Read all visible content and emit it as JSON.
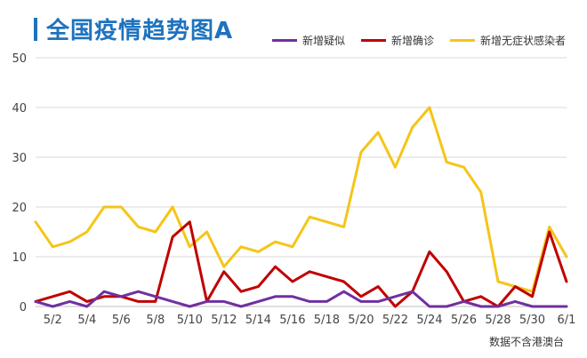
{
  "chart_data": {
    "type": "line",
    "title": "全国疫情趋势图A",
    "xlabel": "",
    "ylabel": "",
    "ylim": [
      0,
      50
    ],
    "yticks": [
      0,
      10,
      20,
      30,
      40,
      50
    ],
    "grid": "horizontal",
    "legend_position": "top-right",
    "x": [
      "5/1",
      "5/2",
      "5/3",
      "5/4",
      "5/5",
      "5/6",
      "5/7",
      "5/8",
      "5/9",
      "5/10",
      "5/11",
      "5/12",
      "5/13",
      "5/14",
      "5/15",
      "5/16",
      "5/17",
      "5/18",
      "5/19",
      "5/20",
      "5/21",
      "5/22",
      "5/23",
      "5/24",
      "5/25",
      "5/26",
      "5/27",
      "5/28",
      "5/29",
      "5/30",
      "5/31",
      "6/1"
    ],
    "xtick_labels": [
      "5/2",
      "5/4",
      "5/6",
      "5/8",
      "5/10",
      "5/12",
      "5/14",
      "5/16",
      "5/18",
      "5/20",
      "5/22",
      "5/24",
      "5/26",
      "5/28",
      "5/30",
      "6/1"
    ],
    "series": [
      {
        "name": "新增疑似",
        "color": "#7030a0",
        "values": [
          1,
          0,
          1,
          0,
          3,
          2,
          3,
          2,
          1,
          0,
          1,
          1,
          0,
          1,
          2,
          2,
          1,
          1,
          3,
          1,
          1,
          2,
          3,
          0,
          0,
          1,
          0,
          0,
          1,
          0,
          0,
          0
        ]
      },
      {
        "name": "新增确诊",
        "color": "#c00000",
        "values": [
          1,
          2,
          3,
          1,
          2,
          2,
          1,
          1,
          14,
          17,
          1,
          7,
          3,
          4,
          8,
          5,
          7,
          6,
          5,
          2,
          4,
          0,
          3,
          11,
          7,
          1,
          2,
          0,
          4,
          2,
          15,
          5
        ]
      },
      {
        "name": "新增无症状感染者",
        "color": "#f5c518",
        "values": [
          17,
          12,
          13,
          15,
          20,
          20,
          16,
          15,
          20,
          12,
          15,
          8,
          12,
          11,
          13,
          12,
          18,
          17,
          16,
          31,
          35,
          28,
          36,
          40,
          29,
          28,
          23,
          5,
          4,
          3,
          16,
          10
        ]
      }
    ],
    "note": "数据不含港澳台"
  }
}
